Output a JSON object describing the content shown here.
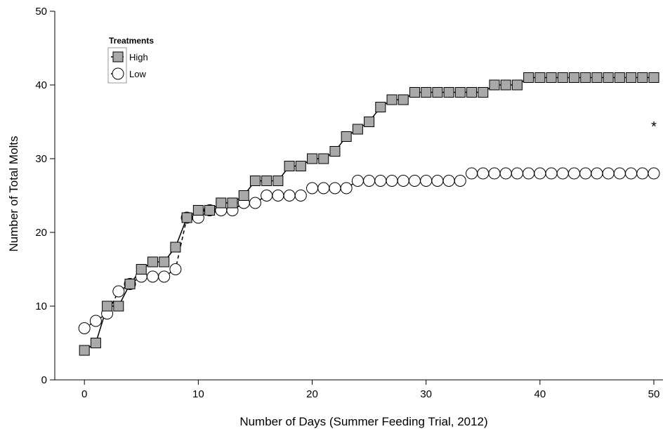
{
  "chart_data": {
    "type": "line",
    "title": "",
    "xlabel": "Number of Days (Summer Feeding Trial, 2012)",
    "ylabel": "Number of Total Molts",
    "xlim": [
      -2.6,
      50.8
    ],
    "ylim": [
      0,
      50
    ],
    "xticks": [
      0,
      10,
      20,
      30,
      40,
      50
    ],
    "yticks": [
      0,
      10,
      20,
      30,
      40,
      50
    ],
    "grid": false,
    "legend": {
      "title": "Treatments",
      "position": "top-left"
    },
    "annotation": {
      "text": "*",
      "x": 50,
      "y": 34.5
    },
    "x": [
      0,
      1,
      2,
      3,
      4,
      5,
      6,
      7,
      8,
      9,
      10,
      11,
      12,
      13,
      14,
      15,
      16,
      17,
      18,
      19,
      20,
      21,
      22,
      23,
      24,
      25,
      26,
      27,
      28,
      29,
      30,
      31,
      32,
      33,
      34,
      35,
      36,
      37,
      38,
      39,
      40,
      41,
      42,
      43,
      44,
      45,
      46,
      47,
      48,
      49,
      50
    ],
    "series": [
      {
        "name": "High",
        "marker": "square",
        "color": "#a9a9a9",
        "line": "solid",
        "values": [
          4,
          5,
          10,
          10,
          13,
          15,
          16,
          16,
          18,
          22,
          23,
          23,
          24,
          24,
          25,
          27,
          27,
          27,
          29,
          29,
          30,
          30,
          31,
          33,
          34,
          35,
          37,
          38,
          38,
          39,
          39,
          39,
          39,
          39,
          39,
          39,
          40,
          40,
          40,
          41,
          41,
          41,
          41,
          41,
          41,
          41,
          41,
          41,
          41,
          41,
          41
        ]
      },
      {
        "name": "Low",
        "marker": "circle",
        "color": "#ffffff",
        "line": "dashed",
        "values": [
          7,
          8,
          9,
          12,
          13,
          14,
          14,
          14,
          15,
          22,
          22,
          23,
          23,
          23,
          24,
          24,
          25,
          25,
          25,
          25,
          26,
          26,
          26,
          26,
          27,
          27,
          27,
          27,
          27,
          27,
          27,
          27,
          27,
          27,
          28,
          28,
          28,
          28,
          28,
          28,
          28,
          28,
          28,
          28,
          28,
          28,
          28,
          28,
          28,
          28,
          28
        ]
      }
    ]
  }
}
